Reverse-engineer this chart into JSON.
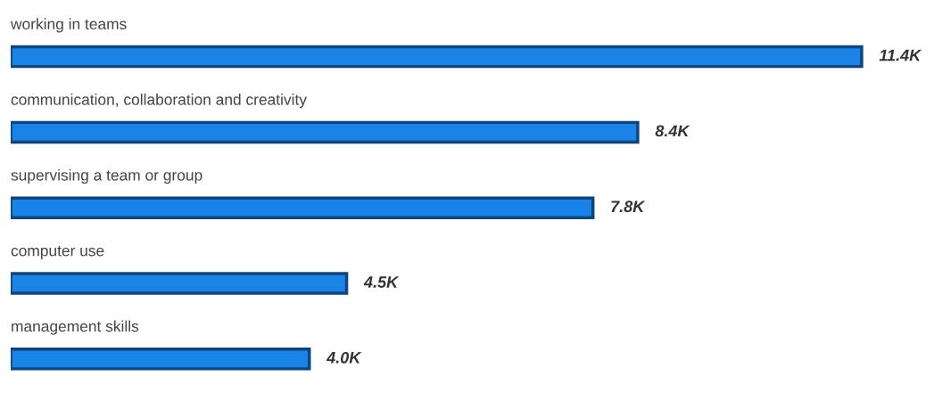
{
  "chart_data": {
    "type": "bar",
    "orientation": "horizontal",
    "categories": [
      "working in teams",
      "communication, collaboration and creativity",
      "supervising a team or group",
      "computer use",
      "management skills"
    ],
    "values": [
      11400,
      8400,
      7800,
      4500,
      4000
    ],
    "value_labels": [
      "11.4K",
      "8.4K",
      "7.8K",
      "4.5K",
      "4.0K"
    ],
    "color": "#1a84e6"
  }
}
